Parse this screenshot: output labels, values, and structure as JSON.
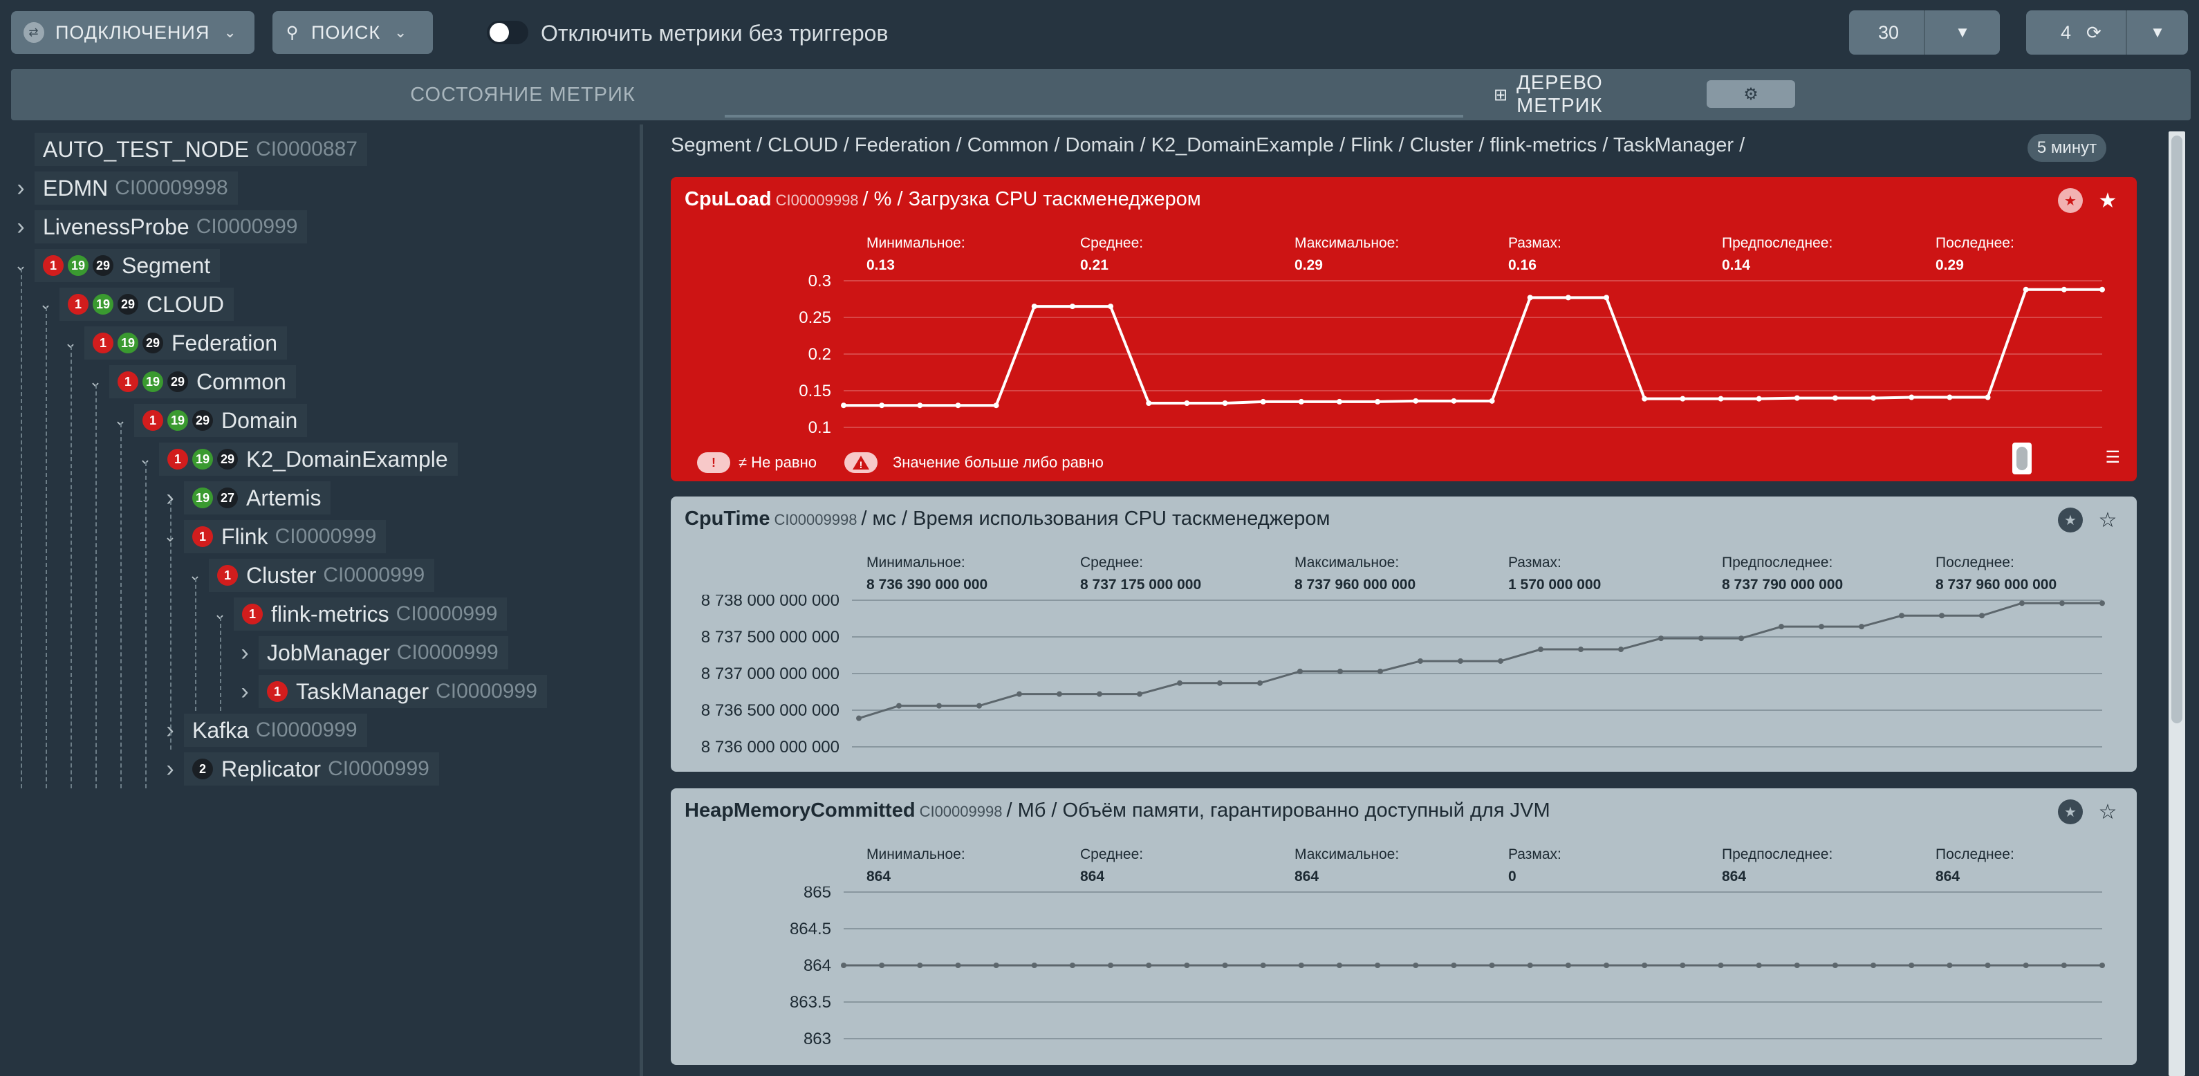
{
  "toolbar": {
    "connections_label": "ПОДКЛЮЧЕНИЯ",
    "search_label": "ПОИСК",
    "toggle_label": "Отключить метрики без триггеров",
    "interval_value": "30",
    "refresh_value": "4"
  },
  "tabs": {
    "state_label": "СОСТОЯНИЕ МЕТРИК",
    "tree_label": "ДЕРЕВО МЕТРИК"
  },
  "tree": [
    {
      "label": "AUTO_TEST_NODE",
      "code": "CI0000887",
      "depth": 0,
      "arrow": "",
      "badges": []
    },
    {
      "label": "EDMN",
      "code": "CI00009998",
      "depth": 0,
      "arrow": ">",
      "badges": []
    },
    {
      "label": "LivenessProbe",
      "code": "CI0000999",
      "depth": 0,
      "arrow": ">",
      "badges": []
    },
    {
      "label": "Segment",
      "code": "",
      "depth": 0,
      "arrow": "v",
      "badges": [
        "1",
        "19",
        "29"
      ]
    },
    {
      "label": "CLOUD",
      "code": "",
      "depth": 1,
      "arrow": "v",
      "badges": [
        "1",
        "19",
        "29"
      ]
    },
    {
      "label": "Federation",
      "code": "",
      "depth": 2,
      "arrow": "v",
      "badges": [
        "1",
        "19",
        "29"
      ]
    },
    {
      "label": "Common",
      "code": "",
      "depth": 3,
      "arrow": "v",
      "badges": [
        "1",
        "19",
        "29"
      ]
    },
    {
      "label": "Domain",
      "code": "",
      "depth": 4,
      "arrow": "v",
      "badges": [
        "1",
        "19",
        "29"
      ]
    },
    {
      "label": "K2_DomainExample",
      "code": "",
      "depth": 5,
      "arrow": "v",
      "badges": [
        "1",
        "19",
        "29"
      ]
    },
    {
      "label": "Artemis",
      "code": "",
      "depth": 6,
      "arrow": ">",
      "badges": [
        "19",
        "27"
      ]
    },
    {
      "label": "Flink",
      "code": "CI0000999",
      "depth": 6,
      "arrow": "v",
      "badges": [
        "1"
      ]
    },
    {
      "label": "Cluster",
      "code": "CI0000999",
      "depth": 7,
      "arrow": "v",
      "badges": [
        "1"
      ]
    },
    {
      "label": "flink-metrics",
      "code": "CI0000999",
      "depth": 8,
      "arrow": "v",
      "badges": [
        "1"
      ]
    },
    {
      "label": "JobManager",
      "code": "CI0000999",
      "depth": 9,
      "arrow": ">",
      "badges": []
    },
    {
      "label": "TaskManager",
      "code": "CI0000999",
      "depth": 9,
      "arrow": ">",
      "badges": [
        "1"
      ]
    },
    {
      "label": "Kafka",
      "code": "CI0000999",
      "depth": 6,
      "arrow": ">",
      "badges": []
    },
    {
      "label": "Replicator",
      "code": "CI0000999",
      "depth": 6,
      "arrow": ">",
      "badges": [
        "2"
      ]
    }
  ],
  "breadcrumb": "Segment / CLOUD / Federation / Common / Domain / K2_DomainExample / Flink / Cluster / flink-metrics / TaskManager /",
  "period_label": "5 минут",
  "stat_labels": [
    "Минимальное:",
    "Среднее:",
    "Максимальное:",
    "Размах:",
    "Предпоследнее:",
    "Последнее:"
  ],
  "panels": [
    {
      "name": "CpuLoad",
      "code": "CI00009998",
      "desc": "/ % / Загрузка CPU таскменеджером",
      "style": "red",
      "stats": [
        "0.13",
        "0.21",
        "0.29",
        "0.16",
        "0.14",
        "0.29"
      ],
      "legend": [
        "≠ Не равно",
        "Значение больше либо равно"
      ],
      "chart_data": {
        "type": "line",
        "ylim": [
          0.1,
          0.3
        ],
        "yticks": [
          "0.3",
          "0.25",
          "0.2",
          "0.15",
          "0.1"
        ],
        "ytick_values": [
          0.3,
          0.25,
          0.2,
          0.15,
          0.1
        ],
        "values": [
          0.13,
          0.13,
          0.13,
          0.13,
          0.13,
          0.265,
          0.265,
          0.265,
          0.133,
          0.133,
          0.133,
          0.135,
          0.135,
          0.135,
          0.135,
          0.136,
          0.136,
          0.136,
          0.277,
          0.277,
          0.277,
          0.139,
          0.139,
          0.139,
          0.139,
          0.14,
          0.14,
          0.14,
          0.141,
          0.141,
          0.141,
          0.288,
          0.288,
          0.288
        ]
      }
    },
    {
      "name": "CpuTime",
      "code": "CI00009998",
      "desc": "/ мс / Время использования CPU таскменеджером",
      "style": "gray",
      "stats": [
        "8 736 390 000 000",
        "8 737 175 000 000",
        "8 737 960 000 000",
        "1 570 000 000",
        "8 737 790 000 000",
        "8 737 960 000 000"
      ],
      "chart_data": {
        "type": "line",
        "ylim": [
          8736000000000,
          8738000000000
        ],
        "yticks": [
          "8 738 000 000 000",
          "8 737 500 000 000",
          "8 737 000 000 000",
          "8 736 500 000 000",
          "8 736 000 000 000"
        ],
        "ytick_values": [
          8738000000000,
          8737500000000,
          8737000000000,
          8736500000000,
          8736000000000
        ],
        "values": [
          8736390000000,
          8736560000000,
          8736560000000,
          8736560000000,
          8736720000000,
          8736720000000,
          8736720000000,
          8736720000000,
          8736870000000,
          8736870000000,
          8736870000000,
          8737030000000,
          8737030000000,
          8737030000000,
          8737170000000,
          8737170000000,
          8737170000000,
          8737330000000,
          8737330000000,
          8737330000000,
          8737480000000,
          8737480000000,
          8737480000000,
          8737640000000,
          8737640000000,
          8737640000000,
          8737790000000,
          8737790000000,
          8737790000000,
          8737960000000,
          8737960000000,
          8737960000000
        ]
      }
    },
    {
      "name": "HeapMemoryCommitted",
      "code": "CI00009998",
      "desc": "/ Мб / Объём памяти, гарантированно доступный для JVM",
      "style": "gray",
      "stats": [
        "864",
        "864",
        "864",
        "0",
        "864",
        "864"
      ],
      "chart_data": {
        "type": "line",
        "ylim": [
          863,
          865
        ],
        "yticks": [
          "865",
          "864.5",
          "864",
          "863.5",
          "863"
        ],
        "ytick_values": [
          865,
          864.5,
          864,
          863.5,
          863
        ],
        "values": [
          864,
          864,
          864,
          864,
          864,
          864,
          864,
          864,
          864,
          864,
          864,
          864,
          864,
          864,
          864,
          864,
          864,
          864,
          864,
          864,
          864,
          864,
          864,
          864,
          864,
          864,
          864,
          864,
          864,
          864,
          864,
          864,
          864,
          864
        ]
      }
    }
  ]
}
